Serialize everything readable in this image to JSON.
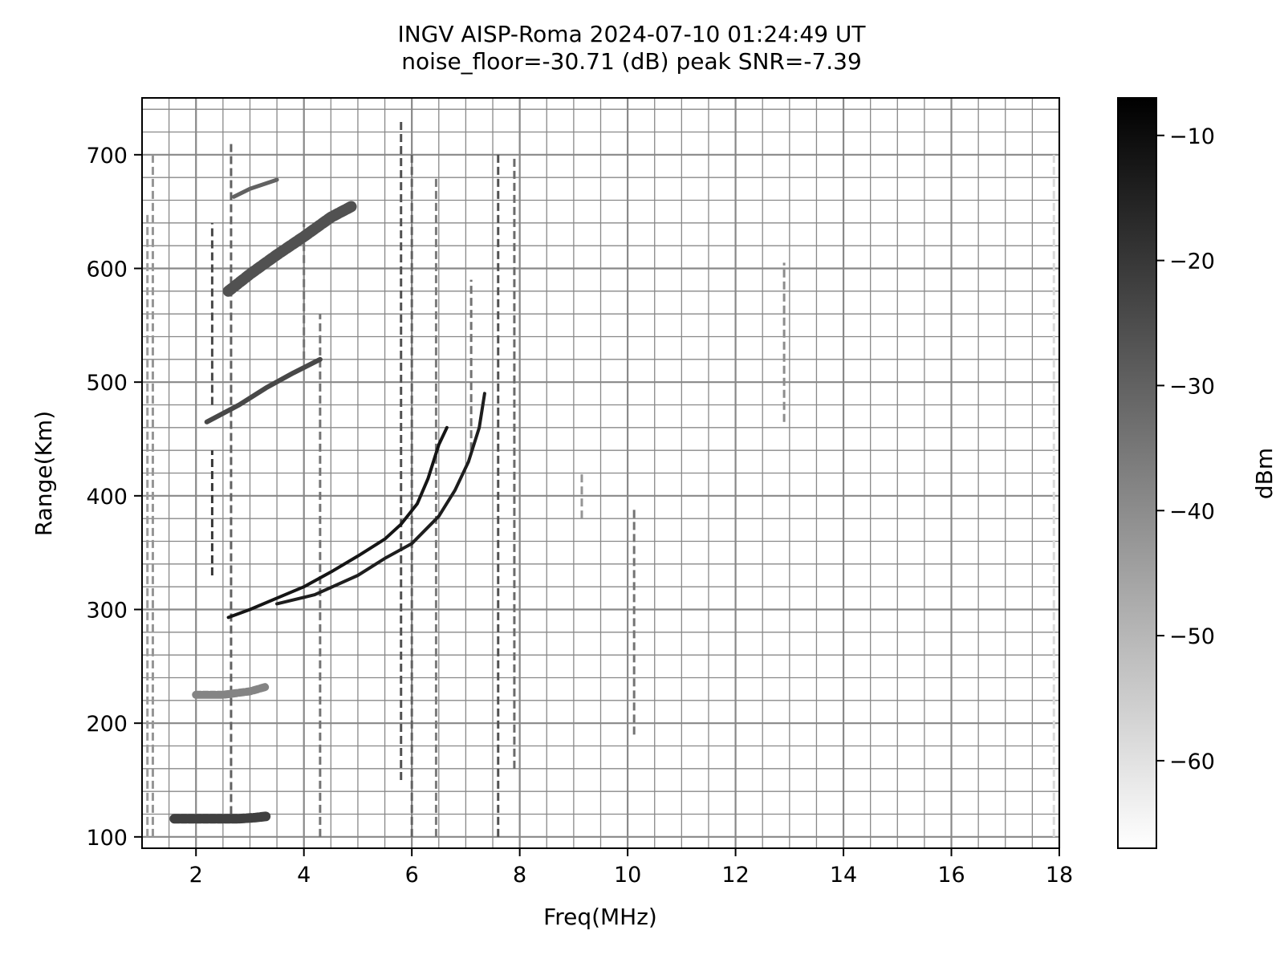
{
  "chart_data": {
    "type": "heatmap",
    "title": "INGV AISP-Roma 2024-07-10 01:24:49 UT",
    "subtitle": "noise_floor=-30.71 (dB) peak SNR=-7.39",
    "xlabel": "Freq(MHz)",
    "ylabel": "Range(Km)",
    "xlim": [
      1,
      18
    ],
    "ylim": [
      90,
      750
    ],
    "xticks": [
      2,
      4,
      6,
      8,
      10,
      12,
      14,
      16,
      18
    ],
    "yticks": [
      100,
      200,
      300,
      400,
      500,
      600,
      700
    ],
    "grid": true,
    "colorbar": {
      "label": "dBm",
      "range": [
        -67,
        -7
      ],
      "ticks": [
        -10,
        -20,
        -30,
        -40,
        -50,
        -60
      ],
      "colormap": "gray_r"
    },
    "colors": {
      "trace_dark": "#222222",
      "trace_mid": "#555555",
      "grid": "#888888"
    },
    "traces": [
      {
        "name_id": "e-layer",
        "points": [
          [
            1.6,
            116
          ],
          [
            1.9,
            116
          ],
          [
            2.2,
            116
          ],
          [
            2.5,
            116
          ],
          [
            2.8,
            116
          ],
          [
            3.1,
            117
          ],
          [
            3.3,
            118
          ]
        ],
        "width": 12,
        "level": -22
      },
      {
        "name_id": "f-o-trace",
        "points": [
          [
            2.6,
            293
          ],
          [
            3.0,
            300
          ],
          [
            3.5,
            310
          ],
          [
            4.0,
            320
          ],
          [
            4.5,
            333
          ],
          [
            5.0,
            347
          ],
          [
            5.5,
            362
          ],
          [
            5.8,
            375
          ],
          [
            6.1,
            393
          ],
          [
            6.3,
            415
          ],
          [
            6.5,
            445
          ],
          [
            6.65,
            460
          ]
        ],
        "width": 4,
        "level": -12
      },
      {
        "name_id": "f-x-trace",
        "points": [
          [
            3.5,
            305
          ],
          [
            4.2,
            313
          ],
          [
            5.0,
            330
          ],
          [
            5.5,
            345
          ],
          [
            6.0,
            358
          ],
          [
            6.5,
            382
          ],
          [
            6.8,
            405
          ],
          [
            7.05,
            430
          ],
          [
            7.25,
            460
          ],
          [
            7.35,
            490
          ]
        ],
        "width": 4,
        "level": -14
      },
      {
        "name_id": "multi-hop-500",
        "points": [
          [
            2.2,
            465
          ],
          [
            2.8,
            480
          ],
          [
            3.3,
            495
          ],
          [
            3.8,
            508
          ],
          [
            4.3,
            520
          ]
        ],
        "width": 6,
        "level": -24
      },
      {
        "name_id": "multi-hop-600",
        "points": [
          [
            2.6,
            580
          ],
          [
            3.0,
            595
          ],
          [
            3.5,
            612
          ],
          [
            4.0,
            628
          ],
          [
            4.5,
            645
          ],
          [
            4.9,
            655
          ]
        ],
        "width": 14,
        "level": -26
      },
      {
        "name_id": "echo-225",
        "points": [
          [
            2.0,
            225
          ],
          [
            2.5,
            225
          ],
          [
            3.0,
            228
          ],
          [
            3.3,
            232
          ]
        ],
        "width": 10,
        "level": -38
      },
      {
        "name_id": "echo-665",
        "points": [
          [
            2.7,
            663
          ],
          [
            3.0,
            670
          ],
          [
            3.5,
            678
          ]
        ],
        "width": 5,
        "level": -30
      }
    ],
    "vertical_lines": [
      {
        "f": 2.3,
        "y": [
          330,
          440
        ],
        "level": -20
      },
      {
        "f": 2.3,
        "y": [
          480,
          640
        ],
        "level": -24
      },
      {
        "f": 2.65,
        "y": [
          120,
          710
        ],
        "level": -30
      },
      {
        "f": 4.3,
        "y": [
          100,
          560
        ],
        "level": -34
      },
      {
        "f": 4.0,
        "y": [
          520,
          640
        ],
        "level": -34
      },
      {
        "f": 5.8,
        "y": [
          150,
          730
        ],
        "level": -26
      },
      {
        "f": 6.0,
        "y": [
          100,
          700
        ],
        "level": -30
      },
      {
        "f": 6.45,
        "y": [
          100,
          680
        ],
        "level": -36
      },
      {
        "f": 7.1,
        "y": [
          440,
          590
        ],
        "level": -34
      },
      {
        "f": 7.6,
        "y": [
          100,
          700
        ],
        "level": -26
      },
      {
        "f": 7.9,
        "y": [
          160,
          700
        ],
        "level": -32
      },
      {
        "f": 9.15,
        "y": [
          380,
          420
        ],
        "level": -42
      },
      {
        "f": 10.12,
        "y": [
          190,
          390
        ],
        "level": -34
      },
      {
        "f": 12.9,
        "y": [
          465,
          605
        ],
        "level": -40
      },
      {
        "f": 1.2,
        "y": [
          100,
          700
        ],
        "level": -42
      },
      {
        "f": 1.1,
        "y": [
          100,
          650
        ],
        "level": -44
      },
      {
        "f": 17.9,
        "y": [
          100,
          700
        ],
        "level": -58
      }
    ]
  }
}
